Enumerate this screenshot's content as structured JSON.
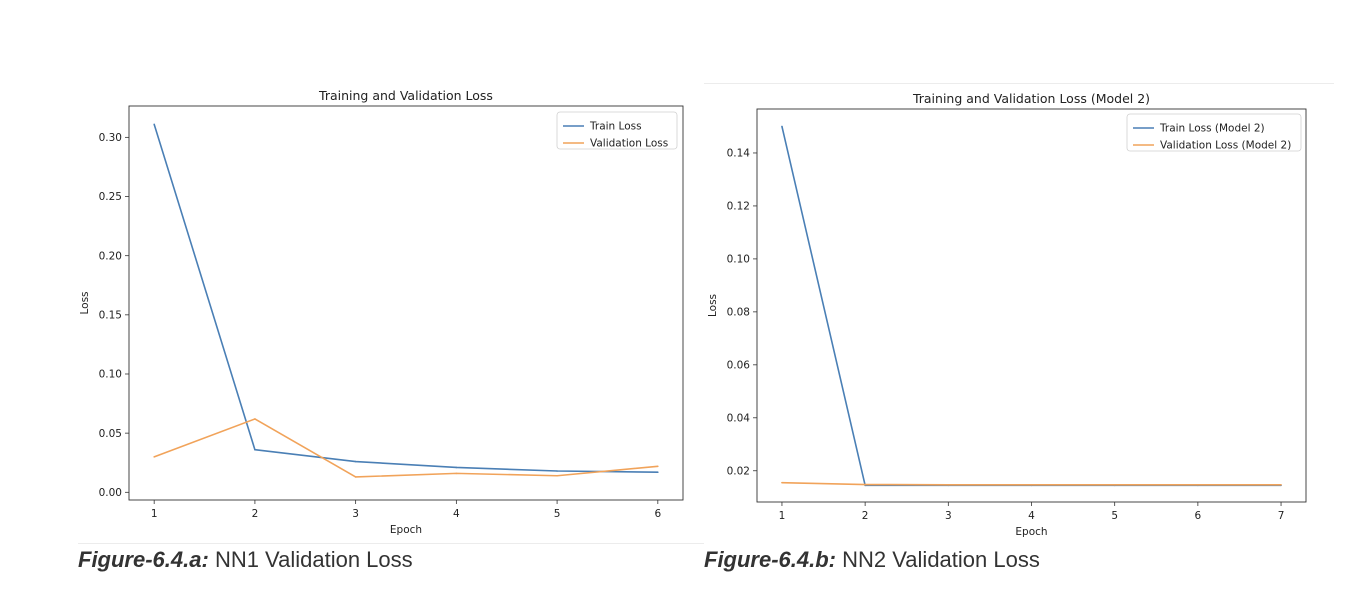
{
  "figures": [
    {
      "caption_label": "Figure-6.4.a:",
      "caption_text": "NN1 Validation Loss"
    },
    {
      "caption_label": "Figure-6.4.b:",
      "caption_text": "NN2 Validation Loss"
    }
  ],
  "chart_data": [
    {
      "type": "line",
      "title": "Training and Validation Loss",
      "xlabel": "Epoch",
      "ylabel": "Loss",
      "xlim": [
        0.75,
        6.25
      ],
      "ylim": [
        -0.0065,
        0.3265
      ],
      "xticks": [
        1,
        2,
        3,
        4,
        5,
        6
      ],
      "yticks": [
        0.0,
        0.05,
        0.1,
        0.15,
        0.2,
        0.25,
        0.3
      ],
      "ytick_labels": [
        "0.00",
        "0.05",
        "0.10",
        "0.15",
        "0.20",
        "0.25",
        "0.30"
      ],
      "grid": false,
      "legend": "top-right",
      "colors": [
        "#4a7fb5",
        "#f1a35a"
      ],
      "series": [
        {
          "name": "Train Loss",
          "x": [
            1,
            2,
            3,
            4,
            5,
            6
          ],
          "y": [
            0.311,
            0.036,
            0.026,
            0.021,
            0.018,
            0.017
          ]
        },
        {
          "name": "Validation Loss",
          "x": [
            1,
            2,
            3,
            4,
            5,
            6
          ],
          "y": [
            0.03,
            0.062,
            0.013,
            0.016,
            0.014,
            0.022
          ]
        }
      ]
    },
    {
      "type": "line",
      "title": "Training and Validation Loss (Model 2)",
      "xlabel": "Epoch",
      "ylabel": "Loss",
      "xlim": [
        0.7,
        7.3
      ],
      "ylim": [
        0.0082,
        0.1566
      ],
      "xticks": [
        1,
        2,
        3,
        4,
        5,
        6,
        7
      ],
      "yticks": [
        0.02,
        0.04,
        0.06,
        0.08,
        0.1,
        0.12,
        0.14
      ],
      "ytick_labels": [
        "0.02",
        "0.04",
        "0.06",
        "0.08",
        "0.10",
        "0.12",
        "0.14"
      ],
      "grid": false,
      "legend": "top-right",
      "colors": [
        "#4a7fb5",
        "#f1a35a"
      ],
      "series": [
        {
          "name": "Train Loss (Model 2)",
          "x": [
            1,
            2,
            3,
            4,
            5,
            6,
            7
          ],
          "y": [
            0.15,
            0.0145,
            0.0145,
            0.0145,
            0.0145,
            0.0145,
            0.0145
          ]
        },
        {
          "name": "Validation Loss (Model 2)",
          "x": [
            1,
            2,
            3,
            4,
            5,
            6,
            7
          ],
          "y": [
            0.0155,
            0.0148,
            0.0147,
            0.0147,
            0.0147,
            0.0147,
            0.0147
          ]
        }
      ]
    }
  ]
}
